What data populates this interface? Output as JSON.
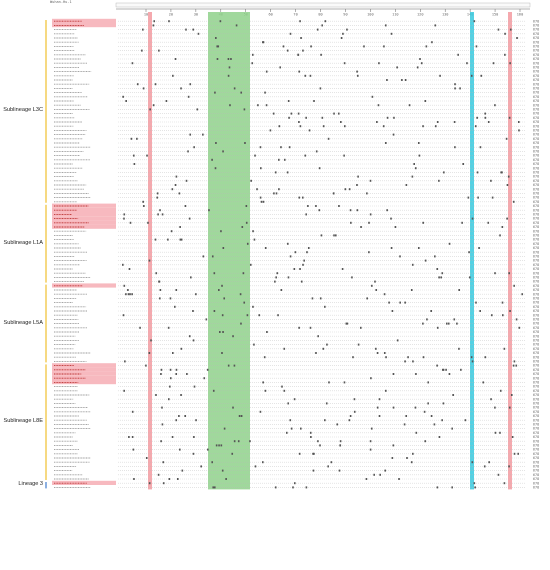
{
  "reference_label": "Wuhan-Hu-1",
  "position_ticks": [
    "10",
    "20",
    "30",
    "40",
    "50",
    "60",
    "70",
    "80",
    "90",
    "100",
    "110",
    "120",
    "130",
    "140",
    "150",
    "160"
  ],
  "row_end_value": "678",
  "colors": {
    "highlight_label": "#f7b9bf",
    "column_red": "#f39aa0",
    "column_green": "#8fd18b",
    "column_cyan": "#37c9de",
    "bracket_yellow": "#f2c94c",
    "bracket_blue": "#5a8fd6"
  },
  "lineages": [
    {
      "label": "Sublineage L3C",
      "rows": 44,
      "highlighted": [
        0,
        1
      ]
    },
    {
      "label": "Sublineage L1A",
      "rows": 19,
      "highlighted": [
        0,
        1,
        2,
        3,
        4,
        5
      ]
    },
    {
      "label": "Sublineage L5A",
      "rows": 19,
      "highlighted": [
        0
      ]
    },
    {
      "label": "Sublineage L8E",
      "rows": 28,
      "highlighted": [
        0,
        1,
        2,
        3,
        4
      ]
    },
    {
      "label": "Lineage 3",
      "rows": 2,
      "highlighted": [
        0
      ]
    }
  ]
}
